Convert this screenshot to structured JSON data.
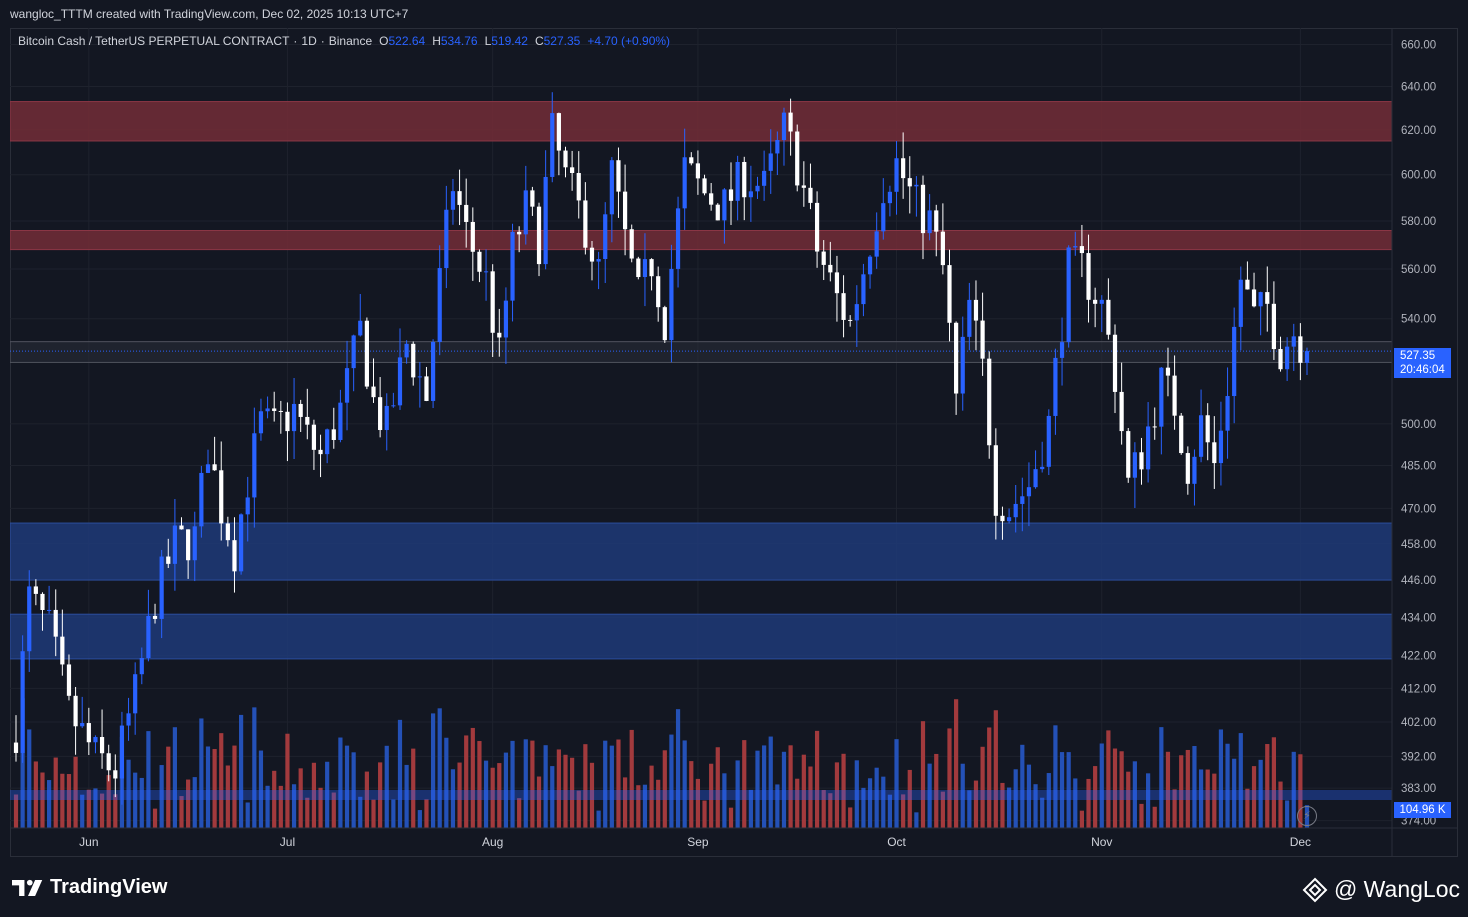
{
  "header": {
    "caption": "wangloc_TTTM created with TradingView.com, Dec 02, 2025 10:13 UTC+7"
  },
  "legend": {
    "symbol": "Bitcoin Cash / TetherUS PERPETUAL CONTRACT",
    "interval": "1D",
    "exchange": "Binance",
    "open_label": "O",
    "open": "522.64",
    "high_label": "H",
    "high": "534.76",
    "low_label": "L",
    "low": "519.42",
    "close_label": "C",
    "close": "527.35",
    "change": "+4.70 (+0.90%)"
  },
  "price_tag": {
    "price": "527.35",
    "countdown": "20:46:04"
  },
  "volume_tag": "104.96 K",
  "footer": {
    "brand": "TradingView",
    "author": "@ WangLoc"
  },
  "colors": {
    "background": "#131722",
    "bull": "#2962ff",
    "bear": "#ffffff",
    "vol_bull": "#2451b7",
    "vol_bear": "#a23a3d",
    "supply_zone": "#6e2b36",
    "demand_zone": "#1f3a78"
  },
  "chart_data": {
    "type": "candlestick",
    "title": "Bitcoin Cash / TetherUS PERPETUAL CONTRACT · 1D · Binance",
    "xlabel": "",
    "ylabel": "",
    "x_ticks": [
      "Jun",
      "Jul",
      "Aug",
      "Sep",
      "Oct",
      "Nov",
      "Dec"
    ],
    "y_ticks": [
      660,
      640,
      620,
      600,
      580,
      560,
      540,
      500,
      485,
      470,
      458,
      446,
      434,
      422,
      412,
      402,
      392,
      383,
      374
    ],
    "y_tick_labels": [
      "660.00",
      "640.00",
      "620.00",
      "600.00",
      "580.00",
      "560.00",
      "540.00",
      "500.00",
      "485.00",
      "470.00",
      "458.00",
      "446.00",
      "434.00",
      "422.00",
      "412.00",
      "402.00",
      "392.00",
      "383.00",
      "374.00"
    ],
    "scale": "log",
    "ylim": [
      372,
      668
    ],
    "last_price": 527.35,
    "zones": [
      {
        "kind": "supply",
        "from": 615,
        "to": 633
      },
      {
        "kind": "supply",
        "from": 568,
        "to": 576
      },
      {
        "kind": "current",
        "from": 523,
        "to": 531
      },
      {
        "kind": "demand",
        "from": 446,
        "to": 465
      },
      {
        "kind": "demand",
        "from": 421,
        "to": 435
      }
    ],
    "price_points": [
      [
        "2025-05-21",
        400
      ],
      [
        "2025-05-23",
        440
      ],
      [
        "2025-05-26",
        430
      ],
      [
        "2025-05-29",
        405
      ],
      [
        "2025-06-02",
        392
      ],
      [
        "2025-06-05",
        388
      ],
      [
        "2025-06-08",
        410
      ],
      [
        "2025-06-11",
        440
      ],
      [
        "2025-06-14",
        458
      ],
      [
        "2025-06-17",
        460
      ],
      [
        "2025-06-19",
        492
      ],
      [
        "2025-06-21",
        470
      ],
      [
        "2025-06-23",
        456
      ],
      [
        "2025-06-25",
        480
      ],
      [
        "2025-06-27",
        500
      ],
      [
        "2025-06-29",
        498
      ],
      [
        "2025-07-02",
        505
      ],
      [
        "2025-07-04",
        495
      ],
      [
        "2025-07-06",
        488
      ],
      [
        "2025-07-09",
        505
      ],
      [
        "2025-07-12",
        535
      ],
      [
        "2025-07-14",
        508
      ],
      [
        "2025-07-16",
        498
      ],
      [
        "2025-07-19",
        530
      ],
      [
        "2025-07-22",
        510
      ],
      [
        "2025-07-24",
        555
      ],
      [
        "2025-07-26",
        596
      ],
      [
        "2025-07-28",
        575
      ],
      [
        "2025-07-31",
        555
      ],
      [
        "2025-08-02",
        525
      ],
      [
        "2025-08-04",
        568
      ],
      [
        "2025-08-06",
        585
      ],
      [
        "2025-08-08",
        572
      ],
      [
        "2025-08-10",
        618
      ],
      [
        "2025-08-12",
        598
      ],
      [
        "2025-08-15",
        578
      ],
      [
        "2025-08-17",
        558
      ],
      [
        "2025-08-19",
        600
      ],
      [
        "2025-08-21",
        572
      ],
      [
        "2025-08-23",
        548
      ],
      [
        "2025-08-25",
        563
      ],
      [
        "2025-08-27",
        540
      ],
      [
        "2025-08-30",
        602
      ],
      [
        "2025-09-02",
        592
      ],
      [
        "2025-09-05",
        586
      ],
      [
        "2025-09-08",
        600
      ],
      [
        "2025-09-11",
        594
      ],
      [
        "2025-09-14",
        620
      ],
      [
        "2025-09-16",
        605
      ],
      [
        "2025-09-19",
        568
      ],
      [
        "2025-09-22",
        548
      ],
      [
        "2025-09-24",
        538
      ],
      [
        "2025-09-26",
        560
      ],
      [
        "2025-09-29",
        596
      ],
      [
        "2025-10-01",
        605
      ],
      [
        "2025-10-04",
        586
      ],
      [
        "2025-10-06",
        580
      ],
      [
        "2025-10-08",
        560
      ],
      [
        "2025-10-10",
        508
      ],
      [
        "2025-10-12",
        545
      ],
      [
        "2025-10-14",
        520
      ],
      [
        "2025-10-16",
        475
      ],
      [
        "2025-10-18",
        470
      ],
      [
        "2025-10-21",
        478
      ],
      [
        "2025-10-24",
        500
      ],
      [
        "2025-10-27",
        560
      ],
      [
        "2025-10-29",
        560
      ],
      [
        "2025-11-01",
        545
      ],
      [
        "2025-11-03",
        518
      ],
      [
        "2025-11-05",
        478
      ],
      [
        "2025-11-07",
        490
      ],
      [
        "2025-11-10",
        515
      ],
      [
        "2025-11-12",
        507
      ],
      [
        "2025-11-14",
        485
      ],
      [
        "2025-11-16",
        500
      ],
      [
        "2025-11-18",
        485
      ],
      [
        "2025-11-20",
        515
      ],
      [
        "2025-11-22",
        556
      ],
      [
        "2025-11-24",
        540
      ],
      [
        "2025-11-26",
        545
      ],
      [
        "2025-11-28",
        528
      ],
      [
        "2025-11-30",
        535
      ],
      [
        "2025-12-02",
        527.35
      ]
    ]
  }
}
